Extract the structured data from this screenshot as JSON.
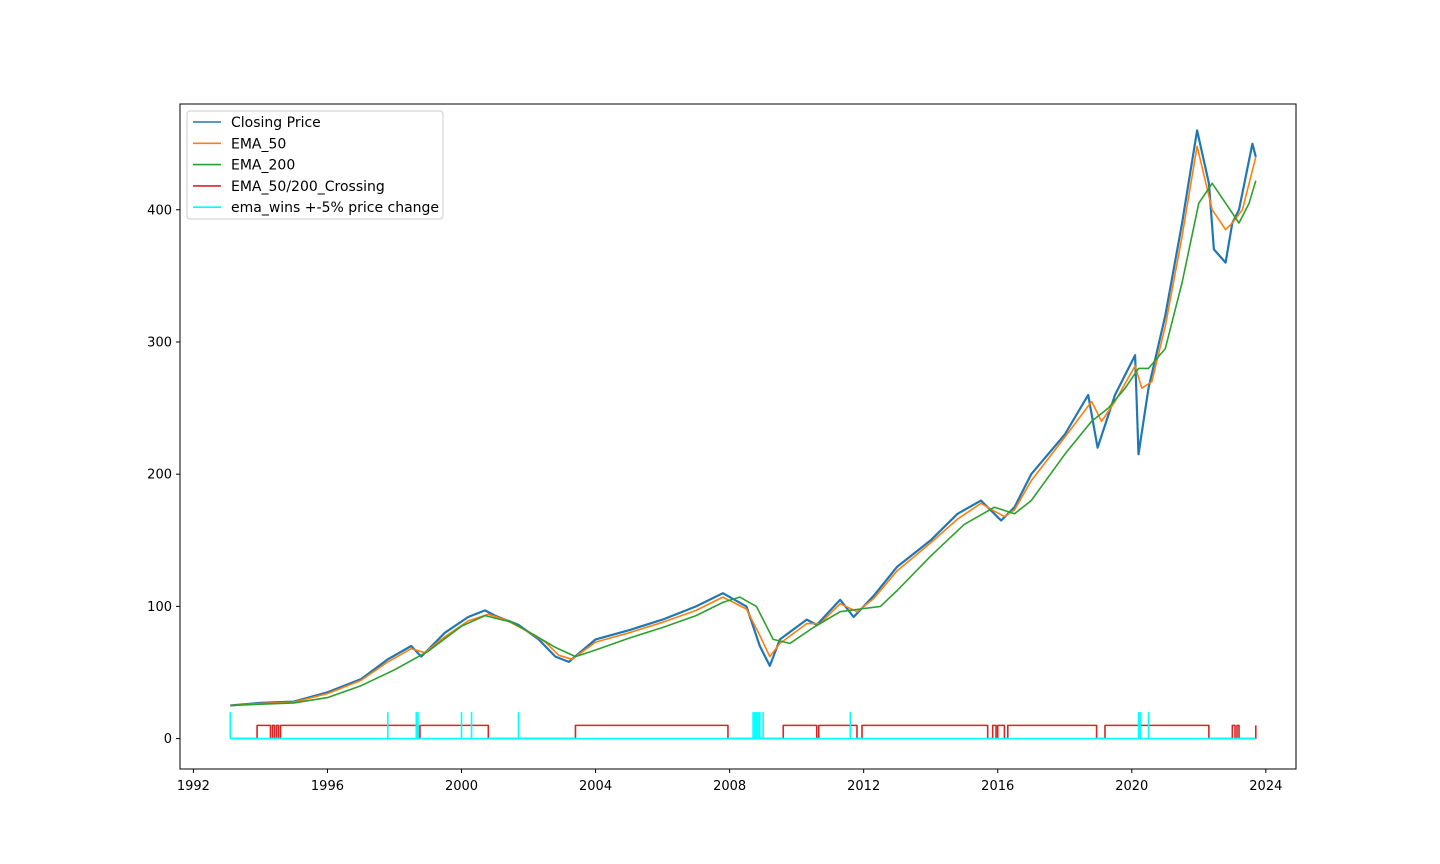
{
  "chart_data": {
    "type": "line",
    "title": "",
    "xlabel": "",
    "ylabel": "",
    "xlim": [
      1991.6,
      2024.9
    ],
    "ylim": [
      -23,
      480
    ],
    "xticks": [
      1992,
      1996,
      2000,
      2004,
      2008,
      2012,
      2016,
      2020,
      2024
    ],
    "yticks": [
      0,
      100,
      200,
      300,
      400
    ],
    "grid": false,
    "legend_position": "top-left",
    "series": [
      {
        "name": "Closing Price",
        "color": "#1f77b4",
        "x": [
          1993.1,
          1994.0,
          1995.0,
          1996.0,
          1997.0,
          1997.8,
          1998.5,
          1998.8,
          1999.5,
          2000.2,
          2000.7,
          2001.0,
          2001.7,
          2002.3,
          2002.8,
          2003.2,
          2004.0,
          2005.0,
          2006.0,
          2007.0,
          2007.8,
          2008.5,
          2008.9,
          2009.2,
          2009.5,
          2010.3,
          2010.6,
          2011.3,
          2011.7,
          2012.3,
          2013.0,
          2014.0,
          2014.8,
          2015.5,
          2015.9,
          2016.1,
          2016.5,
          2017.0,
          2018.0,
          2018.7,
          2018.98,
          2019.5,
          2020.1,
          2020.2,
          2020.5,
          2021.0,
          2021.5,
          2021.95,
          2022.3,
          2022.45,
          2022.8,
          2023.0,
          2023.2,
          2023.6,
          2023.7
        ],
        "y": [
          25,
          27,
          28,
          35,
          45,
          60,
          70,
          62,
          80,
          92,
          97,
          93,
          86,
          75,
          62,
          58,
          75,
          82,
          90,
          100,
          110,
          100,
          70,
          55,
          75,
          90,
          86,
          105,
          92,
          108,
          130,
          150,
          170,
          180,
          170,
          165,
          175,
          200,
          230,
          260,
          220,
          260,
          290,
          215,
          265,
          320,
          390,
          460,
          420,
          370,
          360,
          390,
          400,
          450,
          440
        ]
      },
      {
        "name": "EMA_50",
        "color": "#ff7f0e",
        "x": [
          1993.1,
          1994.0,
          1995.0,
          1996.0,
          1997.0,
          1997.8,
          1998.5,
          1998.9,
          1999.5,
          2000.2,
          2000.8,
          2001.3,
          2001.9,
          2002.5,
          2002.9,
          2003.3,
          2004.0,
          2005.0,
          2006.0,
          2007.0,
          2007.8,
          2008.5,
          2008.9,
          2009.2,
          2009.5,
          2010.3,
          2010.7,
          2011.3,
          2011.8,
          2012.3,
          2013.0,
          2014.0,
          2014.8,
          2015.5,
          2015.9,
          2016.2,
          2016.5,
          2017.0,
          2018.0,
          2018.8,
          2019.1,
          2019.5,
          2020.1,
          2020.3,
          2020.6,
          2021.0,
          2021.5,
          2021.95,
          2022.4,
          2022.8,
          2023.0,
          2023.3,
          2023.7
        ],
        "y": [
          25,
          26.5,
          27.5,
          34,
          44,
          58,
          68,
          65,
          77,
          89,
          94,
          90,
          82,
          73,
          63,
          60,
          73,
          80,
          88,
          97,
          107,
          98,
          78,
          62,
          72,
          87,
          87,
          102,
          96,
          106,
          127,
          148,
          166,
          178,
          172,
          168,
          173,
          195,
          228,
          255,
          240,
          255,
          282,
          265,
          270,
          312,
          380,
          448,
          400,
          385,
          390,
          400,
          440
        ]
      },
      {
        "name": "EMA_200",
        "color": "#2ca02c",
        "x": [
          1993.1,
          1994.0,
          1995.0,
          1996.0,
          1997.0,
          1998.0,
          1999.0,
          2000.0,
          2000.7,
          2001.5,
          2002.2,
          2002.8,
          2003.4,
          2004.0,
          2005.0,
          2006.0,
          2007.0,
          2007.8,
          2008.3,
          2008.8,
          2009.3,
          2009.8,
          2010.5,
          2011.3,
          2011.9,
          2012.5,
          2013.0,
          2014.0,
          2015.0,
          2015.9,
          2016.5,
          2017.0,
          2018.0,
          2018.8,
          2019.3,
          2019.8,
          2020.2,
          2020.5,
          2021.0,
          2021.5,
          2022.0,
          2022.4,
          2022.8,
          2023.2,
          2023.5,
          2023.7
        ],
        "y": [
          25,
          26,
          27,
          31,
          40,
          52,
          66,
          85,
          93,
          88,
          78,
          69,
          62,
          67,
          76,
          84,
          93,
          103,
          107,
          100,
          75,
          72,
          84,
          96,
          98,
          100,
          112,
          138,
          162,
          175,
          170,
          180,
          215,
          240,
          250,
          265,
          280,
          280,
          295,
          345,
          405,
          420,
          405,
          390,
          405,
          422
        ]
      },
      {
        "name": "EMA_50/200_Crossing",
        "color": "#d62728",
        "step": true,
        "x": [
          1993.1,
          1993.9,
          1994.3,
          1994.36,
          1994.42,
          1994.48,
          1994.54,
          1994.6,
          1998.7,
          1998.76,
          2000.8,
          2003.4,
          2007.95,
          2009.6,
          2010.6,
          2010.66,
          2011.8,
          2011.95,
          2015.7,
          2015.85,
          2015.95,
          2016.0,
          2016.2,
          2016.3,
          2018.95,
          2019.2,
          2022.3,
          2023.0,
          2023.08,
          2023.14,
          2023.2,
          2023.7
        ],
        "y": [
          0,
          10,
          0,
          10,
          0,
          10,
          0,
          10,
          0,
          10,
          0,
          10,
          0,
          10,
          0,
          10,
          0,
          10,
          0,
          10,
          0,
          10,
          0,
          10,
          0,
          10,
          0,
          10,
          0,
          10,
          0,
          10
        ]
      },
      {
        "name": "ema_wins +-5% price change",
        "color": "#00ffff",
        "spikes": [
          1993.1,
          1997.8,
          1998.65,
          1998.7,
          2000.0,
          2000.3,
          2001.7,
          2008.7,
          2008.75,
          2008.8,
          2008.85,
          2008.9,
          2009.0,
          2011.6,
          2020.2,
          2020.25,
          2020.5
        ],
        "spike_height": 20,
        "x_range": [
          1993.1,
          2023.7
        ],
        "y": 0
      }
    ]
  }
}
